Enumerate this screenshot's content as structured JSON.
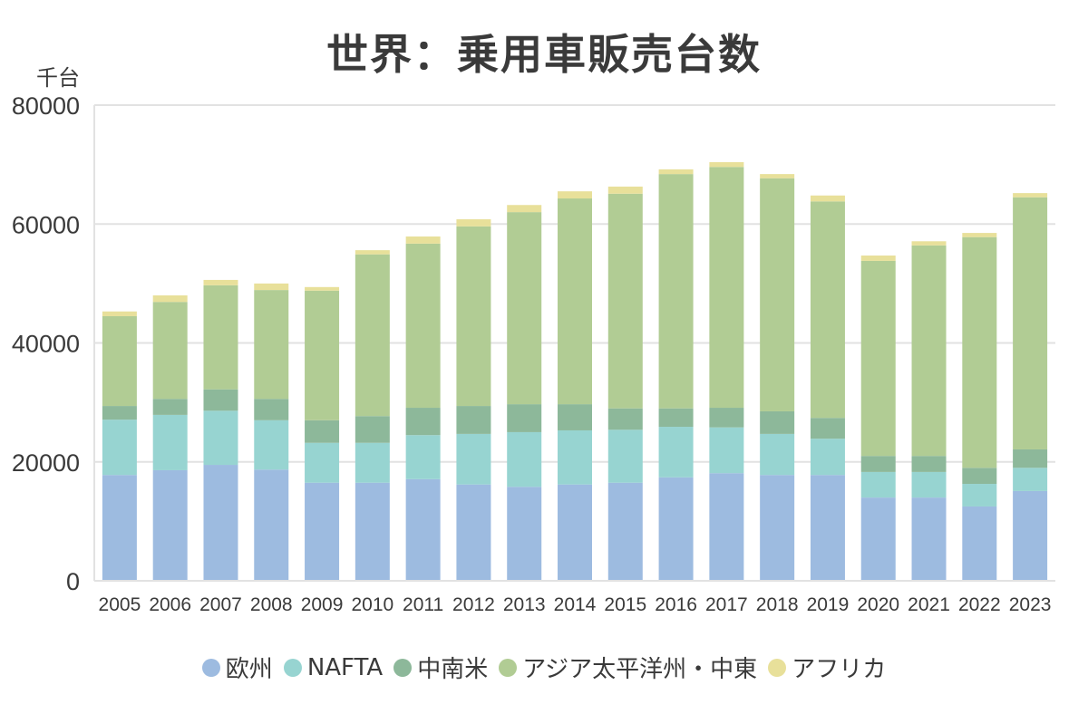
{
  "chart_data": {
    "type": "bar",
    "stacked": true,
    "title": "世界：乗用車販売台数",
    "ylabel": "千台",
    "xlabel": "",
    "ylim": [
      0,
      80000
    ],
    "yticks": [
      0,
      20000,
      40000,
      60000,
      80000
    ],
    "grid": true,
    "legend_position": "bottom",
    "categories": [
      "2005",
      "2006",
      "2007",
      "2008",
      "2009",
      "2010",
      "2011",
      "2012",
      "2013",
      "2014",
      "2015",
      "2016",
      "2017",
      "2018",
      "2019",
      "2020",
      "2021",
      "2022",
      "2023"
    ],
    "series": [
      {
        "name": "欧州",
        "color": "#9dbbe0",
        "values": [
          17800,
          18600,
          19500,
          18700,
          16500,
          16500,
          17100,
          16200,
          15800,
          16200,
          16500,
          17400,
          18100,
          17800,
          17800,
          14000,
          14000,
          12500,
          15100
        ]
      },
      {
        "name": "NAFTA",
        "color": "#97d4d1",
        "values": [
          9300,
          9300,
          9100,
          8300,
          6700,
          6700,
          7400,
          8500,
          9200,
          9100,
          8900,
          8500,
          7700,
          6900,
          6100,
          4300,
          4300,
          3800,
          3900
        ]
      },
      {
        "name": "中南米",
        "color": "#8db89a",
        "values": [
          2300,
          2700,
          3600,
          3600,
          3800,
          4500,
          4600,
          4700,
          4700,
          4400,
          3600,
          3100,
          3300,
          3800,
          3500,
          2700,
          2700,
          2700,
          3100
        ]
      },
      {
        "name": "アジア太平洋州・中東",
        "color": "#b1cc94",
        "values": [
          15100,
          16300,
          17500,
          18300,
          21800,
          27200,
          27600,
          30200,
          32300,
          34600,
          36100,
          39400,
          40500,
          39200,
          36400,
          32800,
          35400,
          38800,
          42400
        ]
      },
      {
        "name": "アフリカ",
        "color": "#e8e09a",
        "values": [
          800,
          1100,
          900,
          1100,
          600,
          700,
          1200,
          1200,
          1200,
          1200,
          1200,
          800,
          800,
          700,
          1000,
          900,
          700,
          700,
          700
        ]
      }
    ]
  }
}
